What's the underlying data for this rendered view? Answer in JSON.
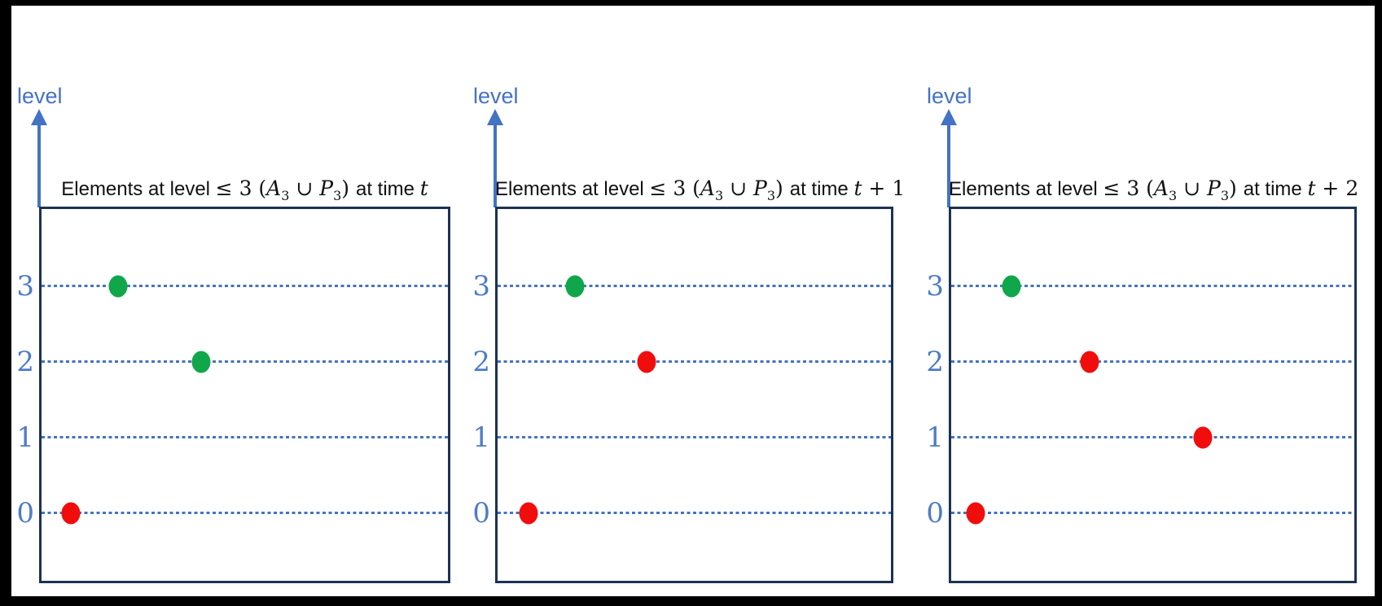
{
  "figure": {
    "axis_label": "level",
    "tick_labels_top_to_bottom": [
      "3",
      "2",
      "1",
      "0"
    ]
  },
  "colors": {
    "accent_blue": "#4472C4",
    "box_border": "#1C3254",
    "green_dot": "#10A64A",
    "red_dot": "#F20D0D",
    "outer_border": "#000000"
  },
  "panels": [
    {
      "axis_label": "level",
      "title": {
        "pre": "Elements at level ",
        "le3": "≤ 3 (",
        "A": "A",
        "A_sub": "3",
        "cup": " ∪ ",
        "P": "P",
        "P_sub": "3",
        "close": ") ",
        "attime": "at time ",
        "t": "t",
        "offset": ""
      },
      "ytick_labels": [
        "3",
        "2",
        "1",
        "0"
      ]
    },
    {
      "axis_label": "level",
      "title": {
        "pre": "Elements at level ",
        "le3": "≤ 3 (",
        "A": "A",
        "A_sub": "3",
        "cup": " ∪ ",
        "P": "P",
        "P_sub": "3",
        "close": ") ",
        "attime": "at time ",
        "t": "t",
        "offset": " + 1"
      },
      "ytick_labels": [
        "3",
        "2",
        "1",
        "0"
      ]
    },
    {
      "axis_label": "level",
      "title": {
        "pre": "Elements at level ",
        "le3": "≤ 3 (",
        "A": "A",
        "A_sub": "3",
        "cup": " ∪ ",
        "P": "P",
        "P_sub": "3",
        "close": ") ",
        "attime": "at time ",
        "t": "t",
        "offset": " + 2"
      },
      "ytick_labels": [
        "3",
        "2",
        "1",
        "0"
      ]
    }
  ],
  "chart_data": [
    {
      "type": "scatter",
      "title": "Elements at level ≤ 3 (A3 ∪ P3) at time t",
      "ylabel": "level",
      "yticks": [
        0,
        1,
        2,
        3
      ],
      "ylim": [
        0,
        3
      ],
      "grid": "dotted horizontal lines at each level",
      "legend": "none",
      "points": [
        {
          "x": 0.072,
          "y": 0,
          "color": "red"
        },
        {
          "x": 0.188,
          "y": 3,
          "color": "green"
        },
        {
          "x": 0.392,
          "y": 2,
          "color": "green"
        }
      ]
    },
    {
      "type": "scatter",
      "title": "Elements at level ≤ 3 (A3 ∪ P3) at time t + 1",
      "ylabel": "level",
      "yticks": [
        0,
        1,
        2,
        3
      ],
      "ylim": [
        0,
        3
      ],
      "grid": "dotted horizontal lines at each level",
      "legend": "none",
      "points": [
        {
          "x": 0.078,
          "y": 0,
          "color": "red"
        },
        {
          "x": 0.196,
          "y": 3,
          "color": "green"
        },
        {
          "x": 0.378,
          "y": 2,
          "color": "red"
        }
      ]
    },
    {
      "type": "scatter",
      "title": "Elements at level ≤ 3 (A3 ∪ P3) at time t + 2",
      "ylabel": "level",
      "yticks": [
        0,
        1,
        2,
        3
      ],
      "ylim": [
        0,
        3
      ],
      "grid": "dotted horizontal lines at each level",
      "legend": "none",
      "points": [
        {
          "x": 0.06,
          "y": 0,
          "color": "red"
        },
        {
          "x": 0.15,
          "y": 3,
          "color": "green"
        },
        {
          "x": 0.343,
          "y": 2,
          "color": "red"
        },
        {
          "x": 0.625,
          "y": 1,
          "color": "red"
        }
      ]
    }
  ]
}
